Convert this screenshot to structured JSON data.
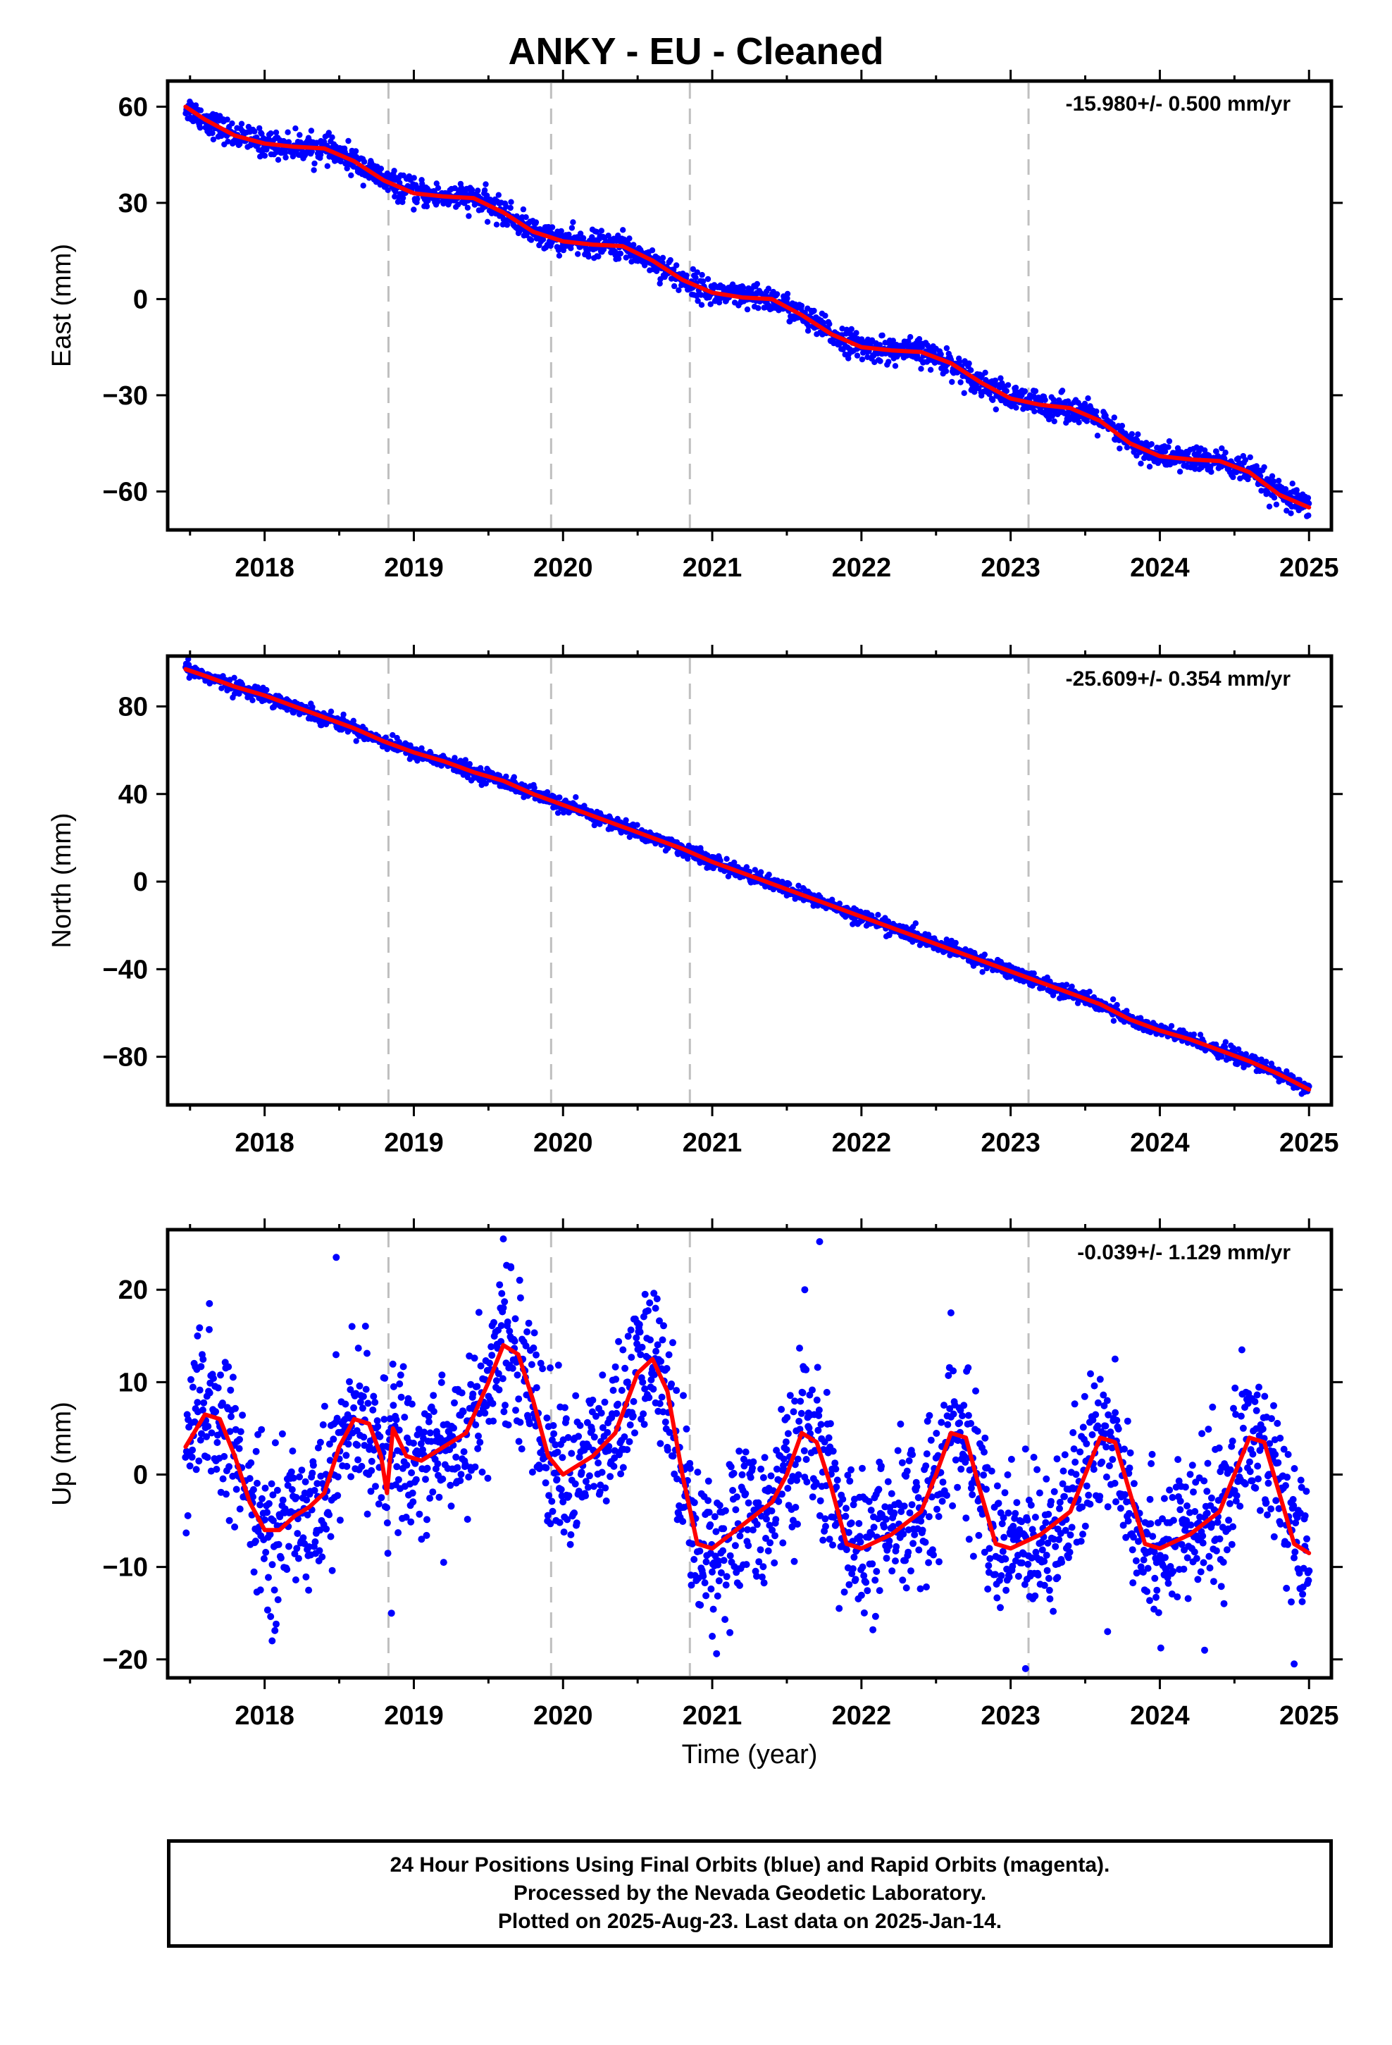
{
  "figure": {
    "title": "ANKY  - EU - Cleaned",
    "xlabel": "Time (year)",
    "footer_lines": [
      "24 Hour Positions Using Final Orbits (blue) and Rapid Orbits (magenta).",
      "Processed by the Nevada Geodetic Laboratory.",
      "Plotted on 2025-Aug-23. Last data on 2025-Jan-14."
    ],
    "colors": {
      "final_points": "#0000ff",
      "fit": "#ff0000",
      "event_lines": "#bfbfbf"
    }
  },
  "chart_data": [
    {
      "type": "scatter",
      "ylabel": "East (mm)",
      "rate_text": "-15.980+/- 0.500 mm/yr",
      "xlim": [
        2017.35,
        2025.15
      ],
      "ylim": [
        -72,
        68
      ],
      "xticks": [
        2018,
        2019,
        2020,
        2021,
        2022,
        2023,
        2024,
        2025
      ],
      "yticks": [
        60,
        30,
        0,
        -30,
        -60
      ],
      "event_lines": [
        2018.83,
        2019.92,
        2020.85,
        2023.12
      ],
      "noise": 2.0,
      "point_radius": 4.2,
      "fit": {
        "x": [
          2017.47,
          2017.6,
          2017.8,
          2018.0,
          2018.2,
          2018.4,
          2018.6,
          2018.8,
          2019.0,
          2019.2,
          2019.4,
          2019.6,
          2019.8,
          2020.0,
          2020.2,
          2020.4,
          2020.6,
          2020.8,
          2021.0,
          2021.2,
          2021.4,
          2021.6,
          2021.8,
          2022.0,
          2022.2,
          2022.4,
          2022.6,
          2022.8,
          2023.0,
          2023.2,
          2023.4,
          2023.6,
          2023.8,
          2024.0,
          2024.2,
          2024.4,
          2024.6,
          2024.8,
          2025.0
        ],
        "y": [
          60,
          56,
          51,
          48.5,
          47.5,
          47,
          43,
          37,
          33,
          32,
          31.5,
          27,
          21,
          18,
          17,
          16.5,
          12,
          6,
          2,
          0.5,
          0,
          -5,
          -11,
          -15,
          -16,
          -16.5,
          -20,
          -26,
          -31,
          -33,
          -34,
          -38,
          -45,
          -49,
          -50,
          -50.5,
          -54,
          -61,
          -65
        ]
      }
    },
    {
      "type": "scatter",
      "ylabel": "North (mm)",
      "rate_text": "-25.609+/- 0.354 mm/yr",
      "xlim": [
        2017.35,
        2025.15
      ],
      "ylim": [
        -102,
        103
      ],
      "xticks": [
        2018,
        2019,
        2020,
        2021,
        2022,
        2023,
        2024,
        2025
      ],
      "yticks": [
        80,
        40,
        0,
        -40,
        -80
      ],
      "event_lines": [
        2018.83,
        2019.92,
        2020.85,
        2023.12
      ],
      "noise": 1.6,
      "point_radius": 4.2,
      "fit": {
        "x": [
          2017.47,
          2017.6,
          2017.8,
          2018.0,
          2018.2,
          2018.4,
          2018.6,
          2018.8,
          2019.0,
          2019.2,
          2019.4,
          2019.6,
          2019.8,
          2020.0,
          2020.2,
          2020.4,
          2020.6,
          2020.8,
          2021.0,
          2021.2,
          2021.4,
          2021.6,
          2021.8,
          2022.0,
          2022.2,
          2022.4,
          2022.6,
          2022.8,
          2023.0,
          2023.2,
          2023.4,
          2023.6,
          2023.8,
          2024.0,
          2024.2,
          2024.4,
          2024.6,
          2024.8,
          2025.0
        ],
        "y": [
          97,
          94,
          89,
          85,
          80,
          75,
          70,
          64,
          59,
          55,
          50,
          46,
          40,
          35,
          30,
          25,
          20,
          15,
          9,
          4,
          -1,
          -6,
          -11,
          -16,
          -21,
          -26,
          -31,
          -36,
          -41,
          -46,
          -51,
          -56,
          -63,
          -68,
          -72,
          -77,
          -82,
          -88,
          -95
        ]
      }
    },
    {
      "type": "scatter",
      "ylabel": "Up (mm)",
      "rate_text": "-0.039+/- 1.129 mm/yr",
      "xlim": [
        2017.35,
        2025.15
      ],
      "ylim": [
        -22,
        26.5
      ],
      "xticks": [
        2018,
        2019,
        2020,
        2021,
        2022,
        2023,
        2024,
        2025
      ],
      "yticks": [
        20,
        10,
        0,
        -10,
        -20
      ],
      "event_lines": [
        2018.83,
        2019.92,
        2020.85,
        2023.12
      ],
      "noise": 4.0,
      "point_radius": 5.0,
      "fit": {
        "x": [
          2017.47,
          2017.6,
          2017.7,
          2017.8,
          2017.9,
          2018.0,
          2018.1,
          2018.2,
          2018.3,
          2018.4,
          2018.5,
          2018.6,
          2018.7,
          2018.78,
          2018.82,
          2018.86,
          2018.95,
          2019.05,
          2019.2,
          2019.35,
          2019.5,
          2019.6,
          2019.7,
          2019.8,
          2019.9,
          2020.0,
          2020.2,
          2020.35,
          2020.5,
          2020.6,
          2020.7,
          2020.8,
          2020.9,
          2021.0,
          2021.2,
          2021.4,
          2021.5,
          2021.6,
          2021.7,
          2021.8,
          2021.9,
          2022.0,
          2022.2,
          2022.4,
          2022.5,
          2022.6,
          2022.7,
          2022.8,
          2022.9,
          2023.0,
          2023.2,
          2023.4,
          2023.5,
          2023.6,
          2023.7,
          2023.8,
          2023.9,
          2024.0,
          2024.2,
          2024.4,
          2024.5,
          2024.6,
          2024.7,
          2024.8,
          2024.9,
          2025.0
        ],
        "y": [
          3,
          6.5,
          6,
          2,
          -3,
          -6,
          -6,
          -4.5,
          -3.5,
          -2,
          3,
          6,
          5.5,
          2,
          -2,
          5,
          2,
          1.5,
          3,
          4.5,
          10,
          14,
          13,
          8,
          2,
          0,
          2,
          4.5,
          11,
          12.5,
          9,
          0,
          -7.5,
          -8,
          -5.5,
          -3,
          0,
          4.5,
          3.5,
          -1.5,
          -7.5,
          -8,
          -6.5,
          -4,
          0,
          4.5,
          4,
          -2,
          -7.5,
          -8,
          -6.5,
          -4,
          0,
          4,
          3.5,
          -2,
          -7.5,
          -8,
          -6.5,
          -4,
          0,
          4,
          3.5,
          -2,
          -7.5,
          -8.5
        ]
      },
      "outliers": [
        [
          2017.63,
          18.5
        ],
        [
          2017.55,
          15.0
        ],
        [
          2018.48,
          23.5
        ],
        [
          2019.6,
          25.5
        ],
        [
          2019.65,
          22.5
        ],
        [
          2020.55,
          19.5
        ],
        [
          2020.62,
          18.0
        ],
        [
          2021.62,
          20.0
        ],
        [
          2021.72,
          25.2
        ],
        [
          2022.6,
          17.5
        ],
        [
          2023.1,
          -21.0
        ],
        [
          2023.7,
          12.5
        ],
        [
          2024.9,
          -20.5
        ],
        [
          2018.05,
          -18.0
        ],
        [
          2019.2,
          -9.5
        ],
        [
          2018.85,
          -15.0
        ],
        [
          2021.0,
          -17.5
        ],
        [
          2023.65,
          -17.0
        ],
        [
          2024.3,
          -19.0
        ],
        [
          2024.55,
          13.5
        ]
      ]
    }
  ]
}
